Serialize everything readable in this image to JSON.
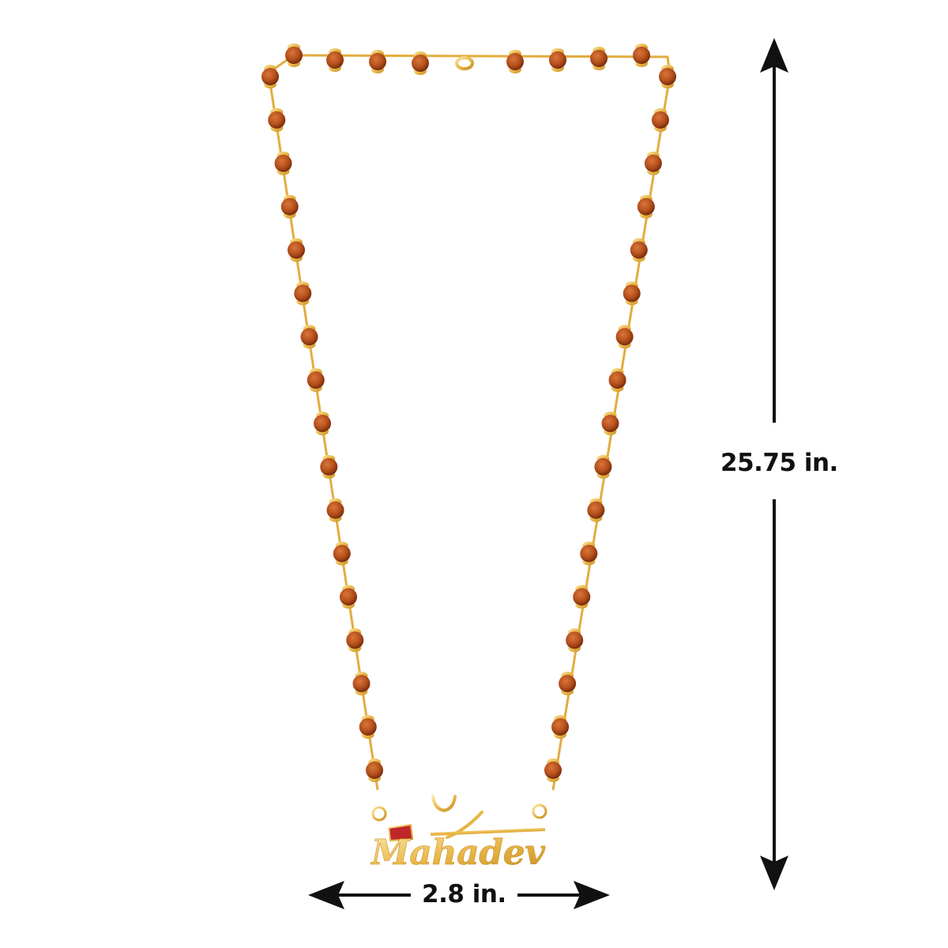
{
  "product": {
    "pendant_text": "Mahadev",
    "colors": {
      "bead": "#b5501c",
      "bead_dark": "#7a2c0c",
      "gold": "#e9b84a",
      "gold_light": "#f8dc8c",
      "enamel_red": "#c0262a",
      "arrow": "#111111"
    }
  },
  "dimensions": {
    "height_label": "25.75 in.",
    "width_label": "2.8 in."
  }
}
